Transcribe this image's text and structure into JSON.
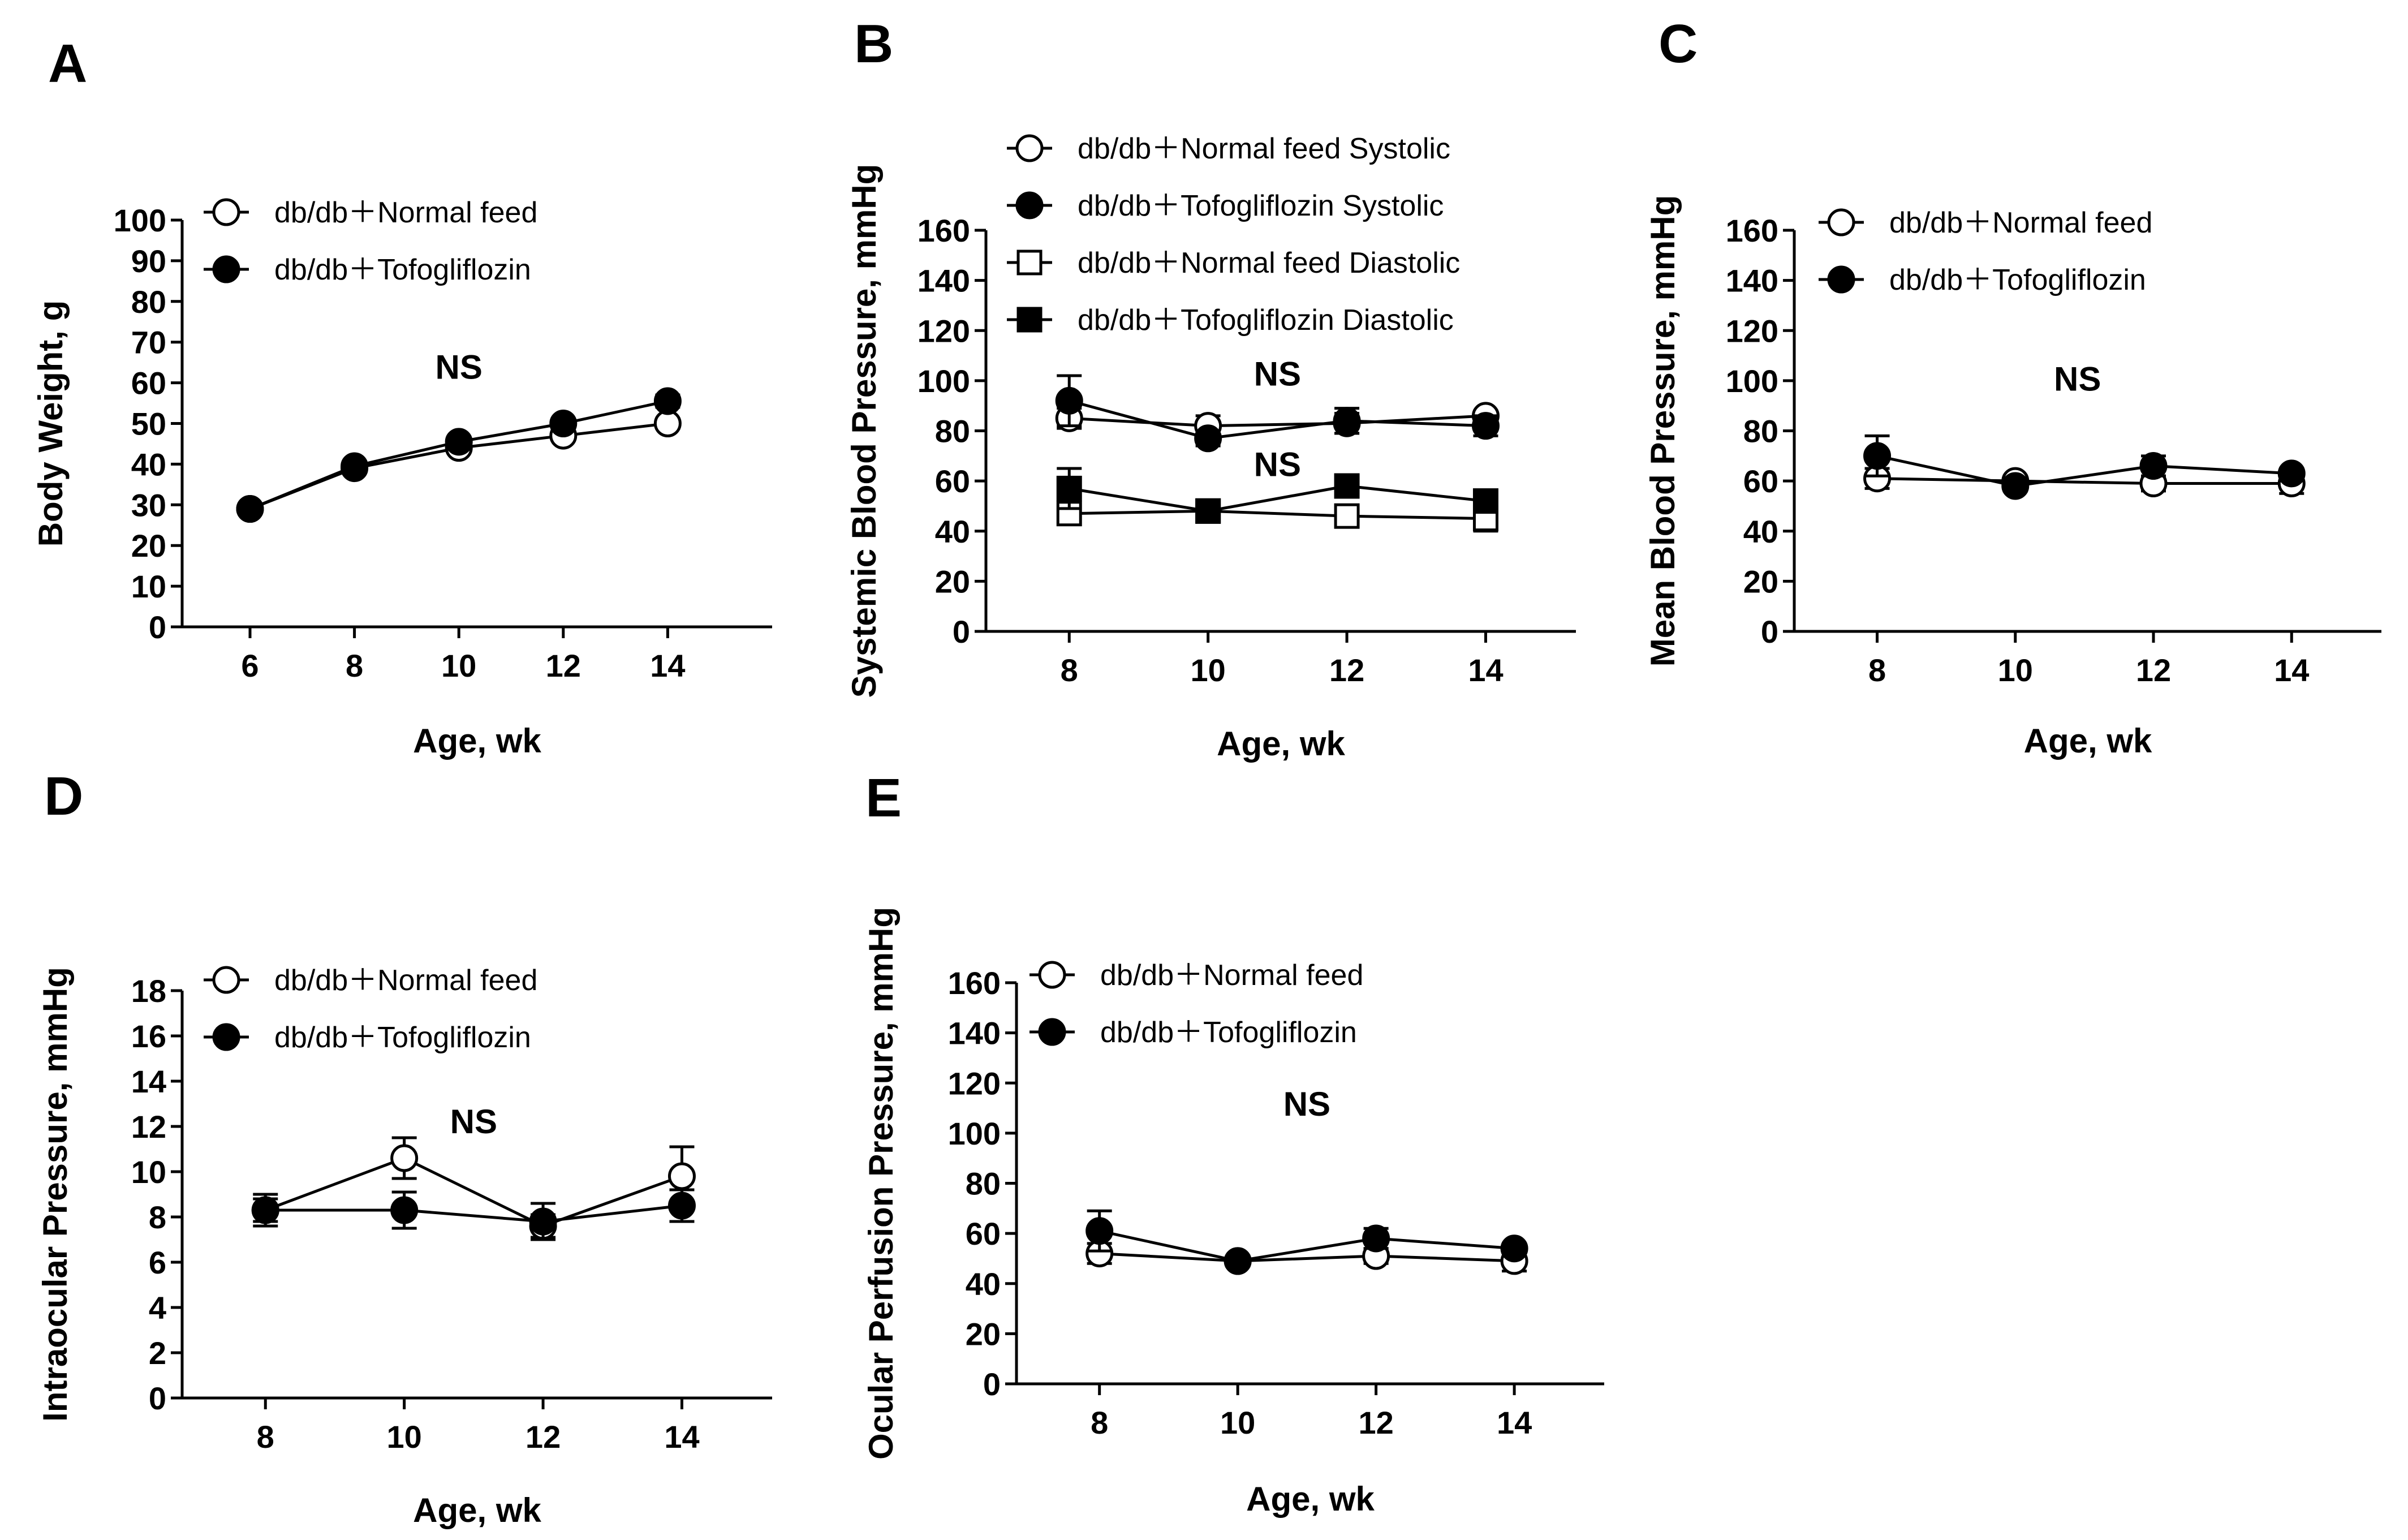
{
  "chart_data": [
    {
      "id": "A",
      "type": "line",
      "letter": "A",
      "xlabel": "Age, wk",
      "ylabel": "Body Weight, g",
      "x": [
        6,
        8,
        10,
        12,
        14
      ],
      "xlim": [
        4.7,
        16.0
      ],
      "ylim": [
        0,
        100
      ],
      "yticks": [
        0,
        10,
        20,
        30,
        40,
        50,
        60,
        70,
        80,
        90,
        100
      ],
      "annotations": [
        {
          "text": "NS",
          "x": 10,
          "y": 61
        }
      ],
      "legend": "top-left",
      "series": [
        {
          "name": "db/db＋Normal feed",
          "marker": "open-circle",
          "values": [
            29,
            39,
            44,
            47,
            50
          ],
          "err": [
            0.8,
            0.8,
            1,
            1,
            1.2
          ]
        },
        {
          "name": "db/db＋Tofogliflozin",
          "marker": "filled-circle",
          "values": [
            29,
            39.5,
            45.5,
            50,
            55.5
          ],
          "err": [
            0.8,
            0.8,
            1,
            1,
            1.5
          ]
        }
      ]
    },
    {
      "id": "B",
      "type": "line",
      "letter": "B",
      "xlabel": "Age, wk",
      "ylabel": "Systemic Blood Pressure, mmHg",
      "x": [
        8,
        10,
        12,
        14
      ],
      "xlim": [
        6.8,
        15.3
      ],
      "ylim": [
        0,
        160
      ],
      "yticks": [
        0,
        20,
        40,
        60,
        80,
        100,
        120,
        140,
        160
      ],
      "annotations": [
        {
          "text": "NS",
          "x": 11,
          "y": 98
        },
        {
          "text": "NS",
          "x": 11,
          "y": 62
        }
      ],
      "legend": "top-left",
      "series": [
        {
          "name": "db/db＋Normal feed  Systolic",
          "marker": "open-circle",
          "values": [
            85,
            82,
            83,
            86
          ],
          "err": [
            4,
            4,
            4,
            2
          ]
        },
        {
          "name": "db/db＋Tofogliflozin Systolic",
          "marker": "filled-circle",
          "values": [
            92,
            77,
            84,
            82
          ],
          "err": [
            10,
            3,
            5,
            4
          ]
        },
        {
          "name": "db/db＋Normal feed Diastolic",
          "marker": "open-square",
          "values": [
            47,
            48,
            46,
            45
          ],
          "err": [
            3,
            3,
            3,
            5
          ]
        },
        {
          "name": "db/db＋Tofogliflozin Diastolic",
          "marker": "filled-square",
          "values": [
            57,
            48,
            58,
            52
          ],
          "err": [
            8,
            3,
            3,
            3
          ]
        }
      ]
    },
    {
      "id": "C",
      "type": "line",
      "letter": "C",
      "xlabel": "Age, wk",
      "ylabel": "Mean Blood Pressure, mmHg",
      "x": [
        8,
        10,
        12,
        14
      ],
      "xlim": [
        6.8,
        15.3
      ],
      "ylim": [
        0,
        160
      ],
      "yticks": [
        0,
        20,
        40,
        60,
        80,
        100,
        120,
        140,
        160
      ],
      "annotations": [
        {
          "text": "NS",
          "x": 10.9,
          "y": 96
        }
      ],
      "legend": "top-left",
      "series": [
        {
          "name": "db/db＋Normal feed",
          "marker": "open-circle",
          "values": [
            61,
            60,
            59,
            59
          ],
          "err": [
            4,
            2,
            3,
            4
          ]
        },
        {
          "name": "db/db＋Tofogliflozin",
          "marker": "filled-circle",
          "values": [
            70,
            58,
            66,
            63
          ],
          "err": [
            8,
            2,
            4,
            2
          ]
        }
      ]
    },
    {
      "id": "D",
      "type": "line",
      "letter": "D",
      "xlabel": "Age, wk",
      "ylabel": "Intraocular Pressure, mmHg",
      "x": [
        8,
        10,
        12,
        14
      ],
      "xlim": [
        6.8,
        15.3
      ],
      "ylim": [
        0,
        18
      ],
      "yticks": [
        0,
        2,
        4,
        6,
        8,
        10,
        12,
        14,
        16,
        18
      ],
      "annotations": [
        {
          "text": "NS",
          "x": 11,
          "y": 11.7
        }
      ],
      "legend": "top-left",
      "series": [
        {
          "name": "db/db＋Normal feed",
          "marker": "open-circle",
          "values": [
            8.3,
            10.6,
            7.6,
            9.8
          ],
          "err": [
            0.5,
            0.9,
            0.5,
            1.3
          ]
        },
        {
          "name": "db/db＋Tofogliflozin",
          "marker": "filled-circle",
          "values": [
            8.3,
            8.3,
            7.8,
            8.5
          ],
          "err": [
            0.7,
            0.8,
            0.8,
            0.7
          ]
        }
      ]
    },
    {
      "id": "E",
      "type": "line",
      "letter": "E",
      "xlabel": "Age, wk",
      "ylabel": "Ocular Perfusion Pressure, mmHg",
      "x": [
        8,
        10,
        12,
        14
      ],
      "xlim": [
        6.8,
        15.3
      ],
      "ylim": [
        0,
        160
      ],
      "yticks": [
        0,
        20,
        40,
        60,
        80,
        100,
        120,
        140,
        160
      ],
      "annotations": [
        {
          "text": "NS",
          "x": 11,
          "y": 107
        }
      ],
      "legend": "top-left",
      "series": [
        {
          "name": "db/db＋Normal feed",
          "marker": "open-circle",
          "values": [
            52,
            49,
            51,
            49
          ],
          "err": [
            4,
            2,
            3,
            4
          ]
        },
        {
          "name": "db/db＋Tofogliflozin",
          "marker": "filled-circle",
          "values": [
            61,
            49,
            58,
            54
          ],
          "err": [
            8,
            2,
            4,
            2
          ]
        }
      ]
    }
  ]
}
